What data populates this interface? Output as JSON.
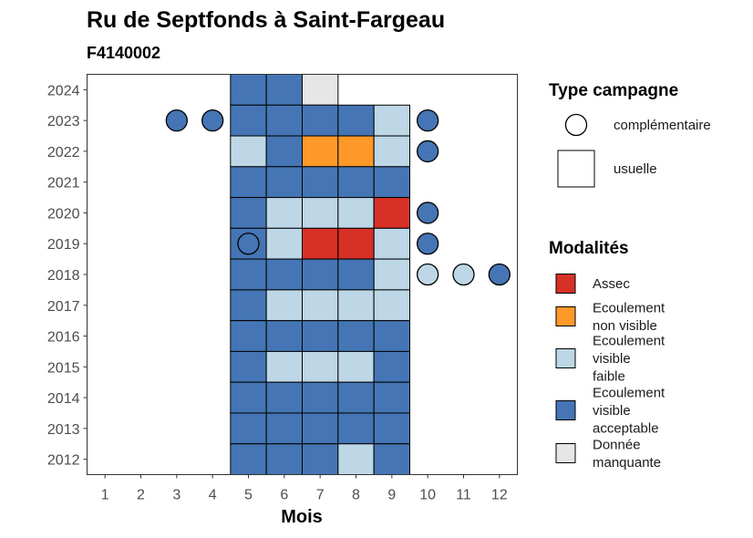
{
  "chart_data": {
    "type": "heatmap",
    "title": "Ru de Septfonds à Saint-Fargeau",
    "subtitle": "F4140002",
    "xlabel": "Mois",
    "ylabel": "",
    "x_ticks": [
      "1",
      "2",
      "3",
      "4",
      "5",
      "6",
      "7",
      "8",
      "9",
      "10",
      "11",
      "12"
    ],
    "y_ticks": [
      "2012",
      "2013",
      "2014",
      "2015",
      "2016",
      "2017",
      "2018",
      "2019",
      "2020",
      "2021",
      "2022",
      "2023",
      "2024"
    ],
    "xlim": [
      0.5,
      12.5
    ],
    "ylim": [
      2011.5,
      2024.5
    ],
    "grid": false,
    "legend_position": "right",
    "legend_shape": {
      "title": "Type campagne",
      "items": [
        {
          "key": "complementaire",
          "label": "complémentaire",
          "shape": "circle"
        },
        {
          "key": "usuelle",
          "label": "usuelle",
          "shape": "square"
        }
      ]
    },
    "legend_fill": {
      "title": "Modalités",
      "items": [
        {
          "key": "assec",
          "lines": [
            "Assec"
          ],
          "color": "#d73027"
        },
        {
          "key": "ecoulement_non_visible",
          "lines": [
            "Ecoulement",
            "non visible"
          ],
          "color": "#fe9929"
        },
        {
          "key": "ecoulement_visible_faible",
          "lines": [
            "Ecoulement",
            "visible",
            "faible"
          ],
          "color": "#bdd7e7"
        },
        {
          "key": "ecoulement_visible_acceptable",
          "lines": [
            "Ecoulement",
            "visible",
            "acceptable"
          ],
          "color": "#4575b4"
        },
        {
          "key": "donnee_manquante",
          "lines": [
            "Donnée",
            "manquante"
          ],
          "color": "#e6e6e6"
        }
      ]
    },
    "points": [
      {
        "year": 2024,
        "month": 5,
        "campagne": "usuelle",
        "modalite": "ecoulement_visible_acceptable"
      },
      {
        "year": 2024,
        "month": 6,
        "campagne": "usuelle",
        "modalite": "ecoulement_visible_acceptable"
      },
      {
        "year": 2024,
        "month": 7,
        "campagne": "usuelle",
        "modalite": "donnee_manquante"
      },
      {
        "year": 2023,
        "month": 3,
        "campagne": "complementaire",
        "modalite": "ecoulement_visible_acceptable"
      },
      {
        "year": 2023,
        "month": 4,
        "campagne": "complementaire",
        "modalite": "ecoulement_visible_acceptable"
      },
      {
        "year": 2023,
        "month": 5,
        "campagne": "usuelle",
        "modalite": "ecoulement_visible_acceptable"
      },
      {
        "year": 2023,
        "month": 6,
        "campagne": "usuelle",
        "modalite": "ecoulement_visible_acceptable"
      },
      {
        "year": 2023,
        "month": 7,
        "campagne": "usuelle",
        "modalite": "ecoulement_visible_acceptable"
      },
      {
        "year": 2023,
        "month": 8,
        "campagne": "usuelle",
        "modalite": "ecoulement_visible_acceptable"
      },
      {
        "year": 2023,
        "month": 9,
        "campagne": "usuelle",
        "modalite": "ecoulement_visible_faible"
      },
      {
        "year": 2023,
        "month": 10,
        "campagne": "complementaire",
        "modalite": "ecoulement_visible_acceptable"
      },
      {
        "year": 2022,
        "month": 5,
        "campagne": "usuelle",
        "modalite": "ecoulement_visible_faible"
      },
      {
        "year": 2022,
        "month": 6,
        "campagne": "usuelle",
        "modalite": "ecoulement_visible_acceptable"
      },
      {
        "year": 2022,
        "month": 7,
        "campagne": "usuelle",
        "modalite": "ecoulement_non_visible"
      },
      {
        "year": 2022,
        "month": 8,
        "campagne": "usuelle",
        "modalite": "ecoulement_non_visible"
      },
      {
        "year": 2022,
        "month": 9,
        "campagne": "usuelle",
        "modalite": "ecoulement_visible_faible"
      },
      {
        "year": 2022,
        "month": 10,
        "campagne": "complementaire",
        "modalite": "ecoulement_visible_acceptable"
      },
      {
        "year": 2021,
        "month": 5,
        "campagne": "usuelle",
        "modalite": "ecoulement_visible_acceptable"
      },
      {
        "year": 2021,
        "month": 6,
        "campagne": "usuelle",
        "modalite": "ecoulement_visible_acceptable"
      },
      {
        "year": 2021,
        "month": 7,
        "campagne": "usuelle",
        "modalite": "ecoulement_visible_acceptable"
      },
      {
        "year": 2021,
        "month": 8,
        "campagne": "usuelle",
        "modalite": "ecoulement_visible_acceptable"
      },
      {
        "year": 2021,
        "month": 9,
        "campagne": "usuelle",
        "modalite": "ecoulement_visible_acceptable"
      },
      {
        "year": 2020,
        "month": 5,
        "campagne": "usuelle",
        "modalite": "ecoulement_visible_acceptable"
      },
      {
        "year": 2020,
        "month": 6,
        "campagne": "usuelle",
        "modalite": "ecoulement_visible_faible"
      },
      {
        "year": 2020,
        "month": 7,
        "campagne": "usuelle",
        "modalite": "ecoulement_visible_faible"
      },
      {
        "year": 2020,
        "month": 8,
        "campagne": "usuelle",
        "modalite": "ecoulement_visible_faible"
      },
      {
        "year": 2020,
        "month": 9,
        "campagne": "usuelle",
        "modalite": "assec"
      },
      {
        "year": 2020,
        "month": 10,
        "campagne": "complementaire",
        "modalite": "ecoulement_visible_acceptable"
      },
      {
        "year": 2019,
        "month": 5,
        "campagne": "usuelle",
        "modalite": "ecoulement_visible_acceptable"
      },
      {
        "year": 2019,
        "month": 5,
        "campagne": "complementaire",
        "modalite": "ecoulement_visible_acceptable"
      },
      {
        "year": 2019,
        "month": 6,
        "campagne": "usuelle",
        "modalite": "ecoulement_visible_faible"
      },
      {
        "year": 2019,
        "month": 7,
        "campagne": "usuelle",
        "modalite": "assec"
      },
      {
        "year": 2019,
        "month": 8,
        "campagne": "usuelle",
        "modalite": "assec"
      },
      {
        "year": 2019,
        "month": 9,
        "campagne": "usuelle",
        "modalite": "ecoulement_visible_faible"
      },
      {
        "year": 2019,
        "month": 10,
        "campagne": "complementaire",
        "modalite": "ecoulement_visible_acceptable"
      },
      {
        "year": 2018,
        "month": 5,
        "campagne": "usuelle",
        "modalite": "ecoulement_visible_acceptable"
      },
      {
        "year": 2018,
        "month": 6,
        "campagne": "usuelle",
        "modalite": "ecoulement_visible_acceptable"
      },
      {
        "year": 2018,
        "month": 7,
        "campagne": "usuelle",
        "modalite": "ecoulement_visible_acceptable"
      },
      {
        "year": 2018,
        "month": 8,
        "campagne": "usuelle",
        "modalite": "ecoulement_visible_acceptable"
      },
      {
        "year": 2018,
        "month": 9,
        "campagne": "usuelle",
        "modalite": "ecoulement_visible_faible"
      },
      {
        "year": 2018,
        "month": 10,
        "campagne": "complementaire",
        "modalite": "ecoulement_visible_faible"
      },
      {
        "year": 2018,
        "month": 11,
        "campagne": "complementaire",
        "modalite": "ecoulement_visible_faible"
      },
      {
        "year": 2018,
        "month": 12,
        "campagne": "complementaire",
        "modalite": "ecoulement_visible_acceptable"
      },
      {
        "year": 2017,
        "month": 5,
        "campagne": "usuelle",
        "modalite": "ecoulement_visible_acceptable"
      },
      {
        "year": 2017,
        "month": 6,
        "campagne": "usuelle",
        "modalite": "ecoulement_visible_faible"
      },
      {
        "year": 2017,
        "month": 7,
        "campagne": "usuelle",
        "modalite": "ecoulement_visible_faible"
      },
      {
        "year": 2017,
        "month": 8,
        "campagne": "usuelle",
        "modalite": "ecoulement_visible_faible"
      },
      {
        "year": 2017,
        "month": 9,
        "campagne": "usuelle",
        "modalite": "ecoulement_visible_faible"
      },
      {
        "year": 2016,
        "month": 5,
        "campagne": "usuelle",
        "modalite": "ecoulement_visible_acceptable"
      },
      {
        "year": 2016,
        "month": 6,
        "campagne": "usuelle",
        "modalite": "ecoulement_visible_acceptable"
      },
      {
        "year": 2016,
        "month": 7,
        "campagne": "usuelle",
        "modalite": "ecoulement_visible_acceptable"
      },
      {
        "year": 2016,
        "month": 8,
        "campagne": "usuelle",
        "modalite": "ecoulement_visible_acceptable"
      },
      {
        "year": 2016,
        "month": 9,
        "campagne": "usuelle",
        "modalite": "ecoulement_visible_acceptable"
      },
      {
        "year": 2015,
        "month": 5,
        "campagne": "usuelle",
        "modalite": "ecoulement_visible_acceptable"
      },
      {
        "year": 2015,
        "month": 6,
        "campagne": "usuelle",
        "modalite": "ecoulement_visible_faible"
      },
      {
        "year": 2015,
        "month": 7,
        "campagne": "usuelle",
        "modalite": "ecoulement_visible_faible"
      },
      {
        "year": 2015,
        "month": 8,
        "campagne": "usuelle",
        "modalite": "ecoulement_visible_faible"
      },
      {
        "year": 2015,
        "month": 9,
        "campagne": "usuelle",
        "modalite": "ecoulement_visible_acceptable"
      },
      {
        "year": 2014,
        "month": 5,
        "campagne": "usuelle",
        "modalite": "ecoulement_visible_acceptable"
      },
      {
        "year": 2014,
        "month": 6,
        "campagne": "usuelle",
        "modalite": "ecoulement_visible_acceptable"
      },
      {
        "year": 2014,
        "month": 7,
        "campagne": "usuelle",
        "modalite": "ecoulement_visible_acceptable"
      },
      {
        "year": 2014,
        "month": 8,
        "campagne": "usuelle",
        "modalite": "ecoulement_visible_acceptable"
      },
      {
        "year": 2014,
        "month": 9,
        "campagne": "usuelle",
        "modalite": "ecoulement_visible_acceptable"
      },
      {
        "year": 2013,
        "month": 5,
        "campagne": "usuelle",
        "modalite": "ecoulement_visible_acceptable"
      },
      {
        "year": 2013,
        "month": 6,
        "campagne": "usuelle",
        "modalite": "ecoulement_visible_acceptable"
      },
      {
        "year": 2013,
        "month": 7,
        "campagne": "usuelle",
        "modalite": "ecoulement_visible_acceptable"
      },
      {
        "year": 2013,
        "month": 8,
        "campagne": "usuelle",
        "modalite": "ecoulement_visible_acceptable"
      },
      {
        "year": 2013,
        "month": 9,
        "campagne": "usuelle",
        "modalite": "ecoulement_visible_acceptable"
      },
      {
        "year": 2012,
        "month": 5,
        "campagne": "usuelle",
        "modalite": "ecoulement_visible_acceptable"
      },
      {
        "year": 2012,
        "month": 6,
        "campagne": "usuelle",
        "modalite": "ecoulement_visible_acceptable"
      },
      {
        "year": 2012,
        "month": 7,
        "campagne": "usuelle",
        "modalite": "ecoulement_visible_acceptable"
      },
      {
        "year": 2012,
        "month": 8,
        "campagne": "usuelle",
        "modalite": "ecoulement_visible_faible"
      },
      {
        "year": 2012,
        "month": 9,
        "campagne": "usuelle",
        "modalite": "ecoulement_visible_acceptable"
      }
    ]
  }
}
